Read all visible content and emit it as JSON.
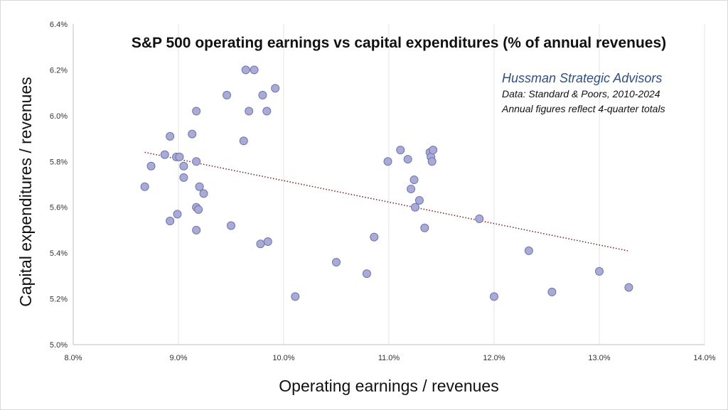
{
  "colors": {
    "point_fill": "#a9abd6",
    "point_stroke": "#6f73b0",
    "trend": "#7a2a2a",
    "grid": "#e3e3e3",
    "brand": "#2f4f7f"
  },
  "annotation": {
    "brand": "Hussman Strategic Advisors",
    "line1": "Data: Standard & Poors, 2010-2024",
    "line2": "Annual figures reflect 4-quarter totals"
  },
  "chart_data": {
    "type": "scatter",
    "title": "S&P 500 operating earnings vs capital expenditures (% of annual revenues)",
    "xlabel": "Operating earnings / revenues",
    "ylabel": "Capital expenditures / revenues",
    "xlim": [
      8.0,
      14.0
    ],
    "ylim": [
      5.0,
      6.4
    ],
    "x_ticks": [
      8.0,
      9.0,
      10.0,
      11.0,
      12.0,
      13.0,
      14.0
    ],
    "y_ticks": [
      5.0,
      5.2,
      5.4,
      5.6,
      5.8,
      6.0,
      6.2,
      6.4
    ],
    "x_tick_labels": [
      "8.0%",
      "9.0%",
      "10.0%",
      "11.0%",
      "12.0%",
      "13.0%",
      "14.0%"
    ],
    "y_tick_labels": [
      "5.0%",
      "5.2%",
      "5.4%",
      "5.6%",
      "5.8%",
      "6.0%",
      "6.2%",
      "6.4%"
    ],
    "grid": "vertical",
    "trendline": {
      "style": "dotted",
      "x": [
        8.68,
        13.27
      ],
      "y": [
        5.84,
        5.41
      ]
    },
    "points": [
      {
        "x": 8.68,
        "y": 5.69
      },
      {
        "x": 8.74,
        "y": 5.78
      },
      {
        "x": 8.87,
        "y": 5.83
      },
      {
        "x": 8.92,
        "y": 5.91
      },
      {
        "x": 8.92,
        "y": 5.54
      },
      {
        "x": 8.98,
        "y": 5.82
      },
      {
        "x": 8.99,
        "y": 5.57
      },
      {
        "x": 9.01,
        "y": 5.82
      },
      {
        "x": 9.05,
        "y": 5.78
      },
      {
        "x": 9.05,
        "y": 5.73
      },
      {
        "x": 9.13,
        "y": 5.92
      },
      {
        "x": 9.17,
        "y": 6.02
      },
      {
        "x": 9.17,
        "y": 5.8
      },
      {
        "x": 9.17,
        "y": 5.6
      },
      {
        "x": 9.17,
        "y": 5.5
      },
      {
        "x": 9.19,
        "y": 5.59
      },
      {
        "x": 9.2,
        "y": 5.69
      },
      {
        "x": 9.24,
        "y": 5.66
      },
      {
        "x": 9.46,
        "y": 6.09
      },
      {
        "x": 9.5,
        "y": 5.52
      },
      {
        "x": 9.62,
        "y": 5.89
      },
      {
        "x": 9.64,
        "y": 6.2
      },
      {
        "x": 9.67,
        "y": 6.02
      },
      {
        "x": 9.72,
        "y": 6.2
      },
      {
        "x": 9.78,
        "y": 5.44
      },
      {
        "x": 9.8,
        "y": 6.09
      },
      {
        "x": 9.84,
        "y": 6.02
      },
      {
        "x": 9.85,
        "y": 5.45
      },
      {
        "x": 9.92,
        "y": 6.12
      },
      {
        "x": 10.11,
        "y": 5.21
      },
      {
        "x": 10.5,
        "y": 5.36
      },
      {
        "x": 10.79,
        "y": 5.31
      },
      {
        "x": 10.86,
        "y": 5.47
      },
      {
        "x": 10.99,
        "y": 5.8
      },
      {
        "x": 11.11,
        "y": 5.85
      },
      {
        "x": 11.18,
        "y": 5.81
      },
      {
        "x": 11.21,
        "y": 5.68
      },
      {
        "x": 11.24,
        "y": 5.72
      },
      {
        "x": 11.25,
        "y": 5.6
      },
      {
        "x": 11.29,
        "y": 5.63
      },
      {
        "x": 11.34,
        "y": 5.51
      },
      {
        "x": 11.39,
        "y": 5.84
      },
      {
        "x": 11.4,
        "y": 5.82
      },
      {
        "x": 11.41,
        "y": 5.8
      },
      {
        "x": 11.42,
        "y": 5.85
      },
      {
        "x": 11.86,
        "y": 5.55
      },
      {
        "x": 12.0,
        "y": 5.21
      },
      {
        "x": 12.33,
        "y": 5.41
      },
      {
        "x": 12.55,
        "y": 5.23
      },
      {
        "x": 13.0,
        "y": 5.32
      },
      {
        "x": 13.28,
        "y": 5.25
      }
    ]
  }
}
